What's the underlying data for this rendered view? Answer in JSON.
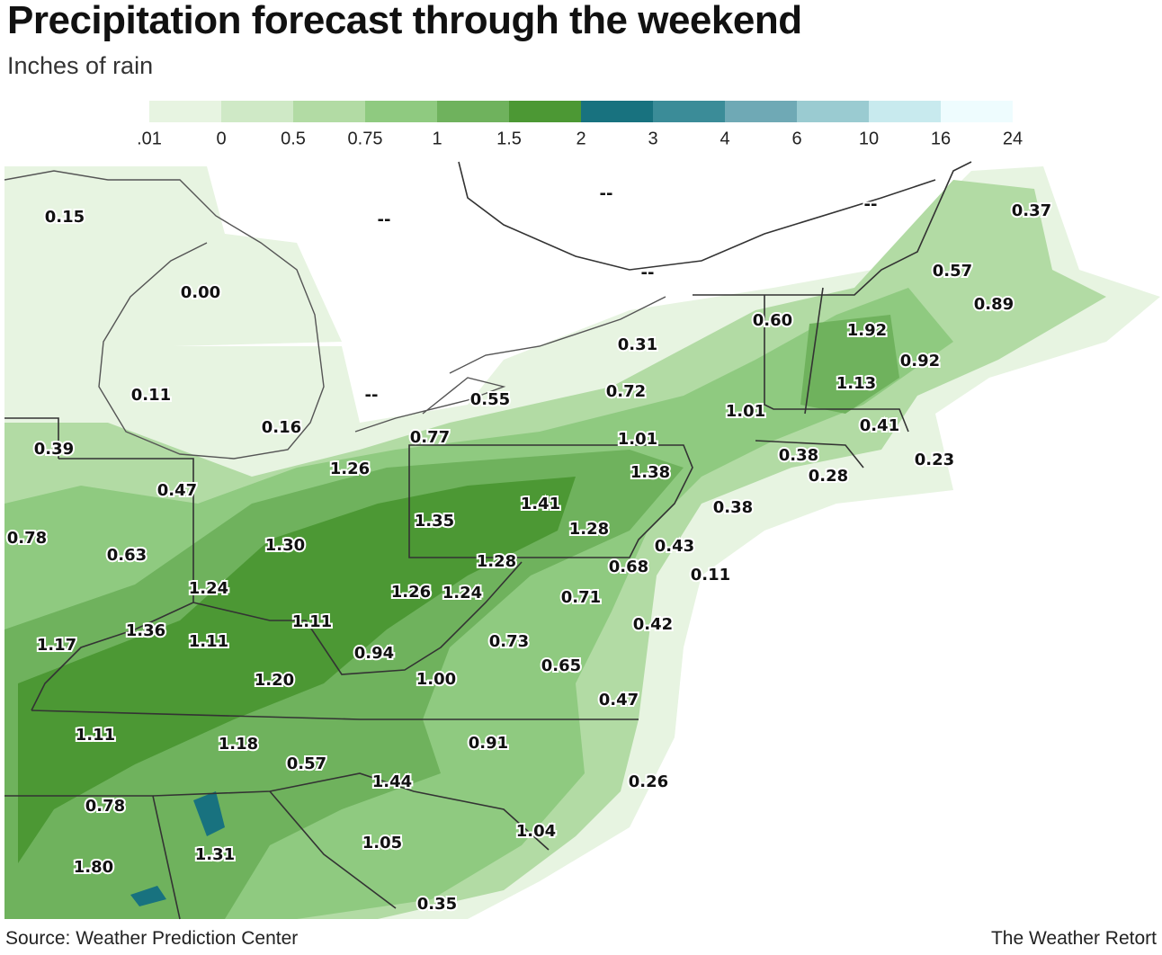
{
  "header": {
    "title": "Precipitation forecast through the weekend",
    "subtitle": "Inches of rain"
  },
  "legend": {
    "labels": [
      ".01",
      "0",
      "0.5",
      "0.75",
      "1",
      "1.5",
      "2",
      "3",
      "4",
      "6",
      "10",
      "16",
      "24"
    ],
    "colors": [
      "#e7f4e1",
      "#cfe9c6",
      "#b2dba4",
      "#8fca80",
      "#6fb25d",
      "#4c9834",
      "#18727f",
      "#3b8c98",
      "#6fa9b5",
      "#9acbd1",
      "#c8eaee",
      "#eefcfe"
    ]
  },
  "map": {
    "labels": [
      "0.15",
      "--",
      "--",
      "--",
      "--",
      "0.37",
      "0.00",
      "0.57",
      "0.89",
      "0.60",
      "1.92",
      "0.31",
      "0.92",
      "0.11",
      "--",
      "0.55",
      "0.72",
      "1.13",
      "1.01",
      "0.41",
      "0.16",
      "0.77",
      "1.01",
      "0.39",
      "0.38",
      "0.23",
      "1.26",
      "1.38",
      "0.28",
      "0.47",
      "0.38",
      "1.41",
      "1.35",
      "1.28",
      "0.78",
      "1.30",
      "0.43",
      "0.63",
      "1.28",
      "0.68",
      "0.11",
      "1.24",
      "1.26",
      "1.24",
      "0.71",
      "1.11",
      "0.42",
      "1.36",
      "1.17",
      "1.11",
      "0.73",
      "0.94",
      "0.65",
      "1.20",
      "1.00",
      "0.47",
      "1.11",
      "0.91",
      "1.18",
      "0.57",
      "1.44",
      "0.26",
      "0.78",
      "1.04",
      "1.05",
      "1.31",
      "1.80",
      "0.35"
    ]
  },
  "footer": {
    "source": "Source: Weather Prediction Center",
    "credit": "The Weather Retort"
  }
}
